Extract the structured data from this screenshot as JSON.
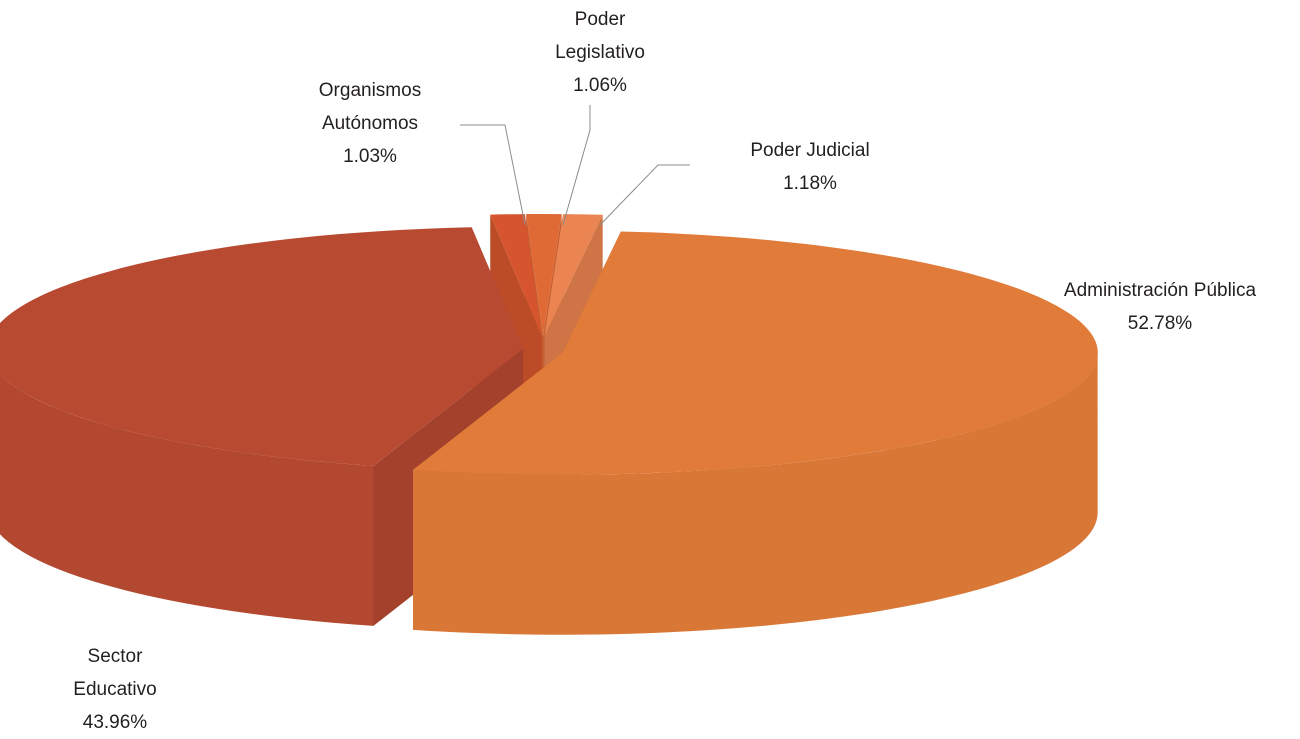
{
  "chart_data": {
    "type": "pie3d",
    "categories": [
      "Administración Pública",
      "Sector Educativo",
      "Organismos Autónomos",
      "Poder Legislativo",
      "Poder Judicial"
    ],
    "values": [
      52.78,
      43.96,
      1.03,
      1.06,
      1.18
    ],
    "value_labels": [
      "52.78%",
      "43.96%",
      "1.03%",
      "1.06%",
      "1.18%"
    ],
    "colors": [
      "#e07b39",
      "#b94a32",
      "#d6552e",
      "#e06a35",
      "#ea8450"
    ]
  }
}
